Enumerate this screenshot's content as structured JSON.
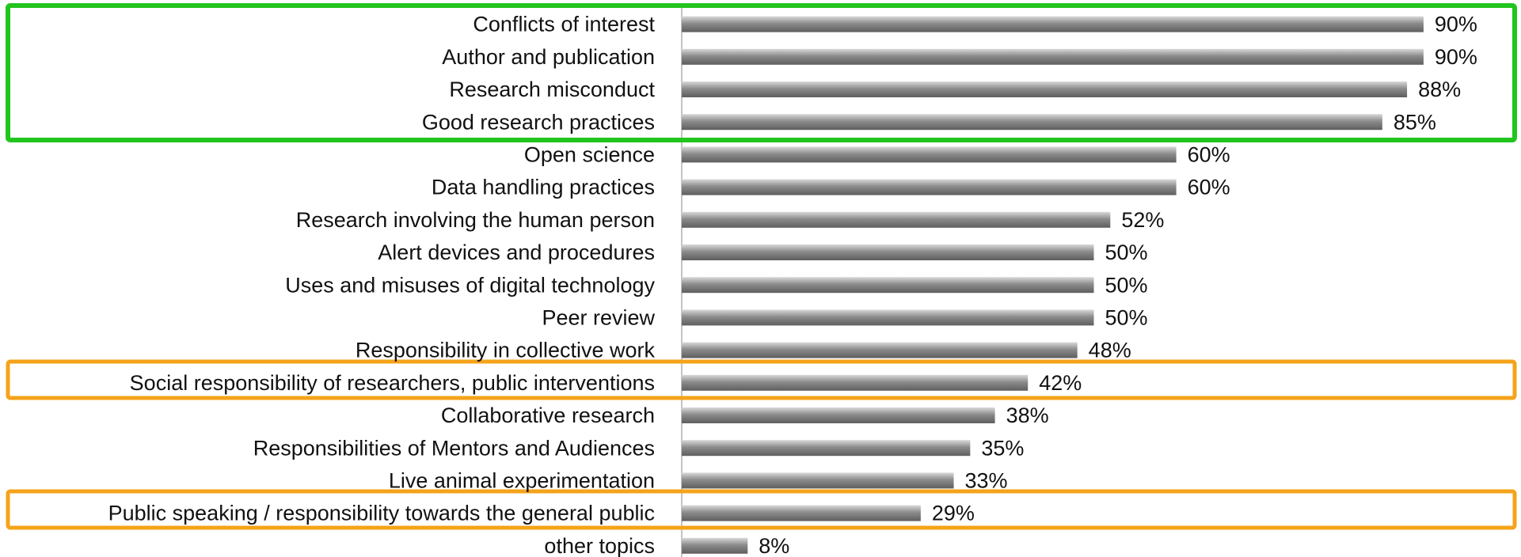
{
  "chart_data": {
    "type": "bar",
    "orientation": "horizontal",
    "categories": [
      "Conflicts of interest",
      "Author and publication",
      "Research misconduct",
      "Good research practices",
      "Open science",
      "Data handling practices",
      "Research involving the human person",
      "Alert devices and procedures",
      "Uses and misuses of digital technology",
      "Peer review",
      "Responsibility in collective work",
      "Social responsibility of researchers, public interventions",
      "Collaborative research",
      "Responsibilities of Mentors and Audiences",
      "Live animal experimentation",
      "Public speaking / responsibility towards the general public",
      "other topics"
    ],
    "values": [
      90,
      90,
      88,
      85,
      60,
      60,
      52,
      50,
      50,
      50,
      48,
      42,
      38,
      35,
      33,
      29,
      8
    ],
    "value_labels": [
      "90%",
      "90%",
      "88%",
      "85%",
      "60%",
      "60%",
      "52%",
      "50%",
      "50%",
      "50%",
      "48%",
      "42%",
      "38%",
      "35%",
      "33%",
      "29%",
      "8%"
    ],
    "color": "#8c8c8c",
    "xlim": [
      0,
      100
    ]
  }
}
